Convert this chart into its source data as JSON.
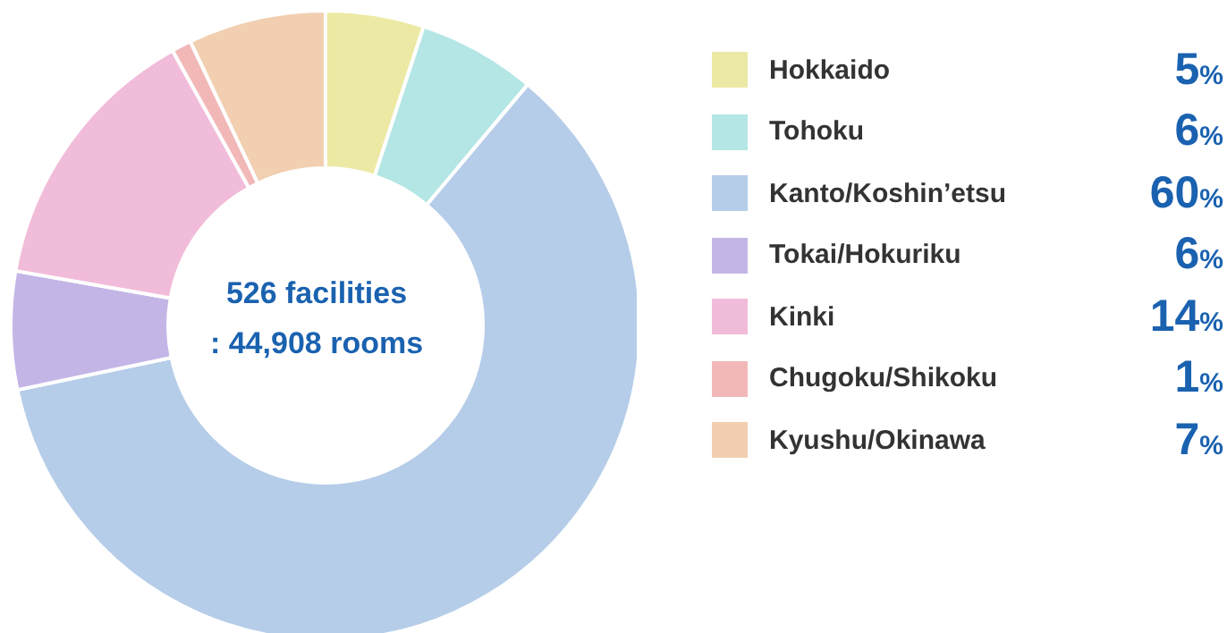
{
  "chart_data": {
    "type": "donut",
    "categories": [
      "Hokkaido",
      "Tohoku",
      "Kanto/Koshin’etsu",
      "Tokai/Hokuriku",
      "Kinki",
      "Chugoku/Shikoku",
      "Kyushu/Okinawa"
    ],
    "values": [
      5,
      6,
      60,
      6,
      14,
      1,
      7
    ],
    "colors": [
      "#ece9a4",
      "#b3e6e4",
      "#b5cde8",
      "#c3b6e6",
      "#f1bcd9",
      "#f2b8b8",
      "#f1cfb0"
    ],
    "value_labels": [
      "5%",
      "6%",
      "60%",
      "6%",
      "14%",
      "1%",
      "7%"
    ],
    "annotations": [
      "526 facilities",
      ": 44,908 rooms"
    ],
    "legend": "right"
  }
}
